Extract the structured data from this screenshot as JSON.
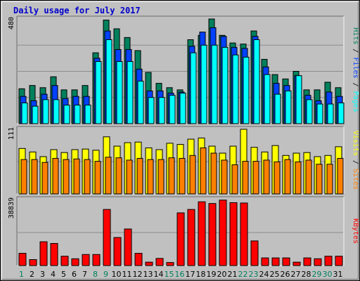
{
  "title": "Daily usage for July 2017",
  "colors": {
    "background": "#c0c0c0",
    "plot": "#c0c0c0",
    "title": "#0000cc",
    "hits": "#00805c",
    "files": "#0040ff",
    "pages": "#00ffff",
    "visits": "#ffff00",
    "sites": "#ff8000",
    "kbytes": "#ff0000",
    "weekend_label": "#00805c",
    "weekday_label": "#000000"
  },
  "chart_data": [
    {
      "type": "bar",
      "title": "Daily usage for July 2017",
      "ylabel_parts": [
        {
          "text": "Hits",
          "color": "#00805c"
        },
        {
          "text": " / ",
          "color": "#000000"
        },
        {
          "text": "Files",
          "color": "#0040ff"
        },
        {
          "text": " / ",
          "color": "#000000"
        },
        {
          "text": "Pages",
          "color": "#00ffff"
        }
      ],
      "ymax_label": "480",
      "ylim": [
        0,
        480
      ],
      "categories": [
        "1",
        "2",
        "3",
        "4",
        "5",
        "6",
        "7",
        "8",
        "9",
        "10",
        "11",
        "12",
        "13",
        "14",
        "15",
        "16",
        "17",
        "18",
        "19",
        "20",
        "21",
        "22",
        "23",
        "24",
        "25",
        "26",
        "27",
        "28",
        "29",
        "30",
        "31"
      ],
      "series": [
        {
          "name": "Hits",
          "color": "#00805c",
          "values": [
            160,
            175,
            165,
            215,
            155,
            155,
            175,
            325,
            475,
            435,
            395,
            335,
            235,
            185,
            165,
            155,
            385,
            405,
            480,
            405,
            370,
            365,
            425,
            295,
            225,
            205,
            240,
            155,
            155,
            190,
            165
          ]
        },
        {
          "name": "Files",
          "color": "#0040ff",
          "values": [
            125,
            105,
            135,
            175,
            115,
            125,
            125,
            300,
            425,
            340,
            340,
            250,
            150,
            150,
            140,
            145,
            355,
            420,
            440,
            400,
            350,
            345,
            400,
            260,
            185,
            175,
            220,
            130,
            105,
            145,
            125
          ]
        },
        {
          "name": "Pages",
          "color": "#00ffff",
          "values": [
            95,
            80,
            110,
            110,
            85,
            85,
            85,
            285,
            385,
            285,
            285,
            195,
            120,
            120,
            130,
            140,
            325,
            360,
            360,
            350,
            315,
            305,
            385,
            225,
            135,
            150,
            220,
            110,
            90,
            90,
            95
          ]
        }
      ]
    },
    {
      "type": "bar",
      "ylabel_parts": [
        {
          "text": "Visits",
          "color": "#ffff00"
        },
        {
          "text": " / ",
          "color": "#000000"
        },
        {
          "text": "Sites",
          "color": "#ff8000"
        }
      ],
      "ymax_label": "111",
      "ylim": [
        0,
        111
      ],
      "categories": [
        "1",
        "2",
        "3",
        "4",
        "5",
        "6",
        "7",
        "8",
        "9",
        "10",
        "11",
        "12",
        "13",
        "14",
        "15",
        "16",
        "17",
        "18",
        "19",
        "20",
        "21",
        "22",
        "23",
        "24",
        "25",
        "26",
        "27",
        "28",
        "29",
        "30",
        "31"
      ],
      "series": [
        {
          "name": "Visits",
          "color": "#ffff00",
          "values": [
            78,
            72,
            64,
            76,
            71,
            76,
            77,
            75,
            98,
            82,
            88,
            89,
            79,
            76,
            87,
            85,
            94,
            96,
            82,
            70,
            82,
            111,
            80,
            72,
            83,
            66,
            70,
            71,
            64,
            66,
            81
          ]
        },
        {
          "name": "Sites",
          "color": "#ff8000",
          "values": [
            59,
            59,
            54,
            61,
            59,
            60,
            59,
            56,
            63,
            62,
            58,
            61,
            59,
            59,
            62,
            61,
            66,
            79,
            70,
            58,
            50,
            56,
            56,
            58,
            55,
            59,
            55,
            58,
            51,
            51,
            61
          ]
        }
      ]
    },
    {
      "type": "bar",
      "ylabel_parts": [
        {
          "text": "KBytes",
          "color": "#ff0000"
        }
      ],
      "ymax_label": "38839",
      "ylim": [
        0,
        38839
      ],
      "categories": [
        "1",
        "2",
        "3",
        "4",
        "5",
        "6",
        "7",
        "8",
        "9",
        "10",
        "11",
        "12",
        "13",
        "14",
        "15",
        "16",
        "17",
        "18",
        "19",
        "20",
        "21",
        "22",
        "23",
        "24",
        "25",
        "26",
        "27",
        "28",
        "29",
        "30",
        "31"
      ],
      "series": [
        {
          "name": "KBytes",
          "color": "#ff0000",
          "values": [
            7200,
            3500,
            14000,
            13000,
            5500,
            4000,
            6500,
            6500,
            33000,
            16500,
            21500,
            7200,
            2000,
            4200,
            1800,
            31000,
            33000,
            37500,
            36500,
            38500,
            37000,
            36800,
            14500,
            4500,
            4500,
            4500,
            2000,
            4500,
            4000,
            5500,
            5500
          ]
        }
      ]
    }
  ],
  "weekend_days": [
    1,
    8,
    9,
    15,
    16,
    22,
    23,
    29,
    30
  ]
}
